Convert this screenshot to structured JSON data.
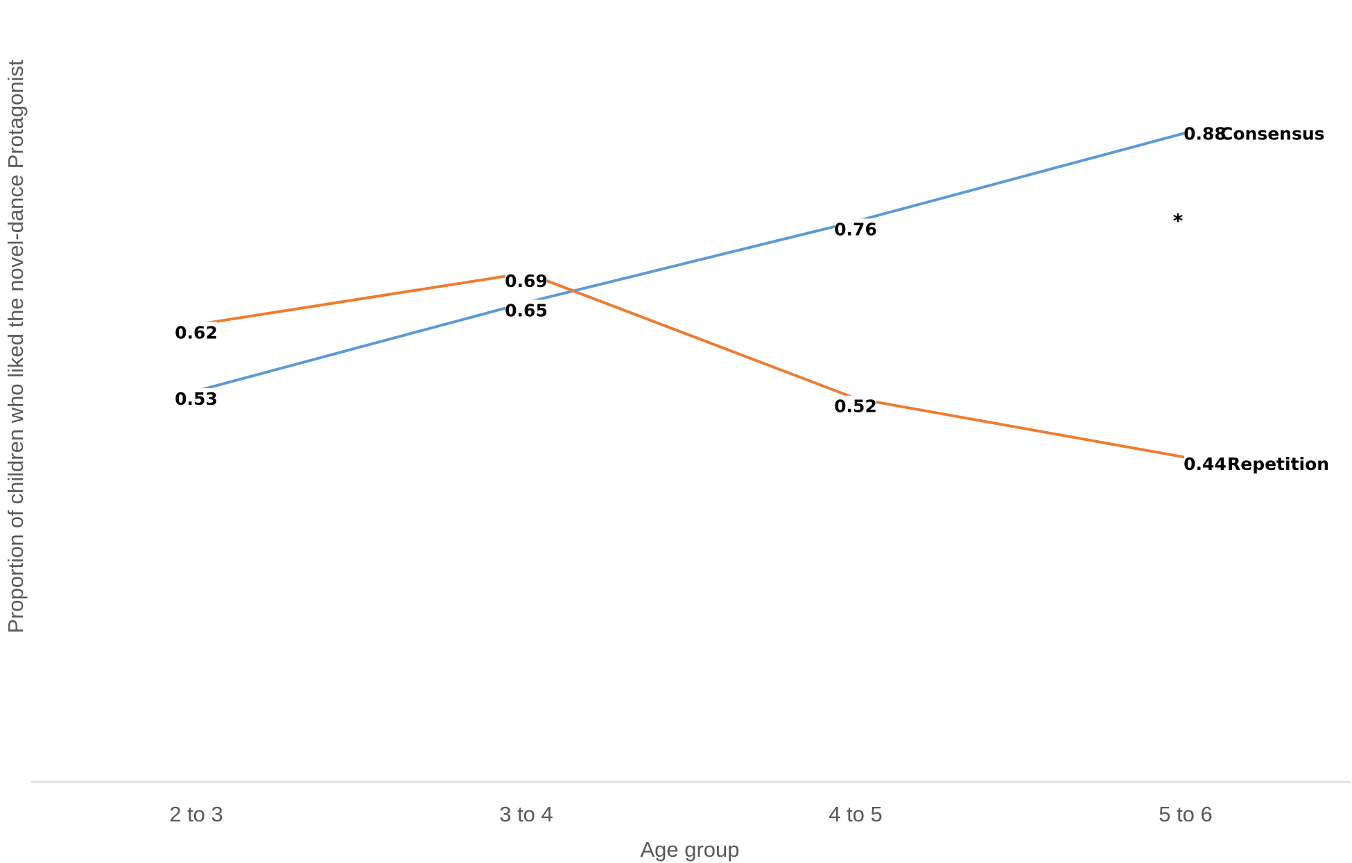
{
  "chart_data": {
    "type": "line",
    "categories": [
      "2 to 3",
      "3 to 4",
      "4 to 5",
      "5 to 6"
    ],
    "series": [
      {
        "name": "Consensus",
        "values": [
          0.53,
          0.65,
          0.76,
          0.88
        ],
        "color": "#5B9BD5"
      },
      {
        "name": "Repetition",
        "values": [
          0.62,
          0.69,
          0.52,
          0.44
        ],
        "color": "#ED7D31"
      }
    ],
    "data_labels": {
      "Consensus": [
        "0.53",
        "0.65",
        "0.76",
        "0.88"
      ],
      "Repetition": [
        "0.62",
        "0.69",
        "0.52",
        "0.44"
      ]
    },
    "xlabel": "Age group",
    "ylabel": "Proportion of children who liked the novel-dance Protagonist",
    "ylim": [
      0,
      1
    ],
    "grid": false,
    "annotation": "*",
    "axis_color": "#D9D9D9"
  }
}
